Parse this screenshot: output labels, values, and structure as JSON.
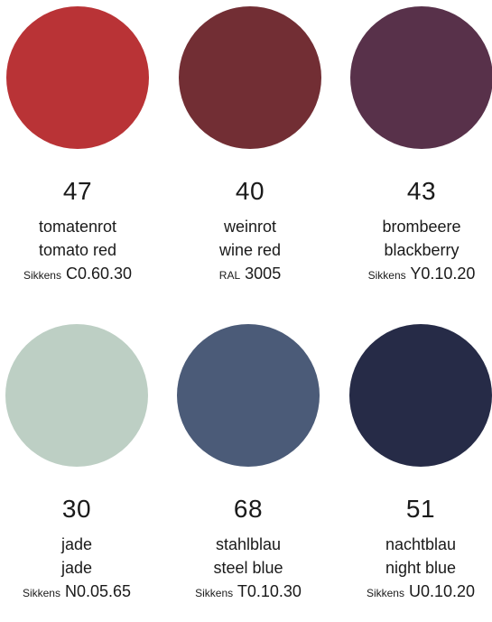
{
  "swatches": [
    {
      "number": "47",
      "name_de": "tomatenrot",
      "name_en": "tomato red",
      "system": "Sikkens",
      "code": "C0.60.30",
      "color": "#b93336"
    },
    {
      "number": "40",
      "name_de": "weinrot",
      "name_en": "wine red",
      "system": "RAL",
      "code": "3005",
      "color": "#722e34"
    },
    {
      "number": "43",
      "name_de": "brombeere",
      "name_en": "blackberry",
      "system": "Sikkens",
      "code": "Y0.10.20",
      "color": "#58314a"
    },
    {
      "number": "30",
      "name_de": "jade",
      "name_en": "jade",
      "system": "Sikkens",
      "code": "N0.05.65",
      "color": "#bdcfc4"
    },
    {
      "number": "68",
      "name_de": "stahlblau",
      "name_en": "steel blue",
      "system": "Sikkens",
      "code": "T0.10.30",
      "color": "#4b5b78"
    },
    {
      "number": "51",
      "name_de": "nachtblau",
      "name_en": "night blue",
      "system": "Sikkens",
      "code": "U0.10.20",
      "color": "#262b47"
    }
  ]
}
